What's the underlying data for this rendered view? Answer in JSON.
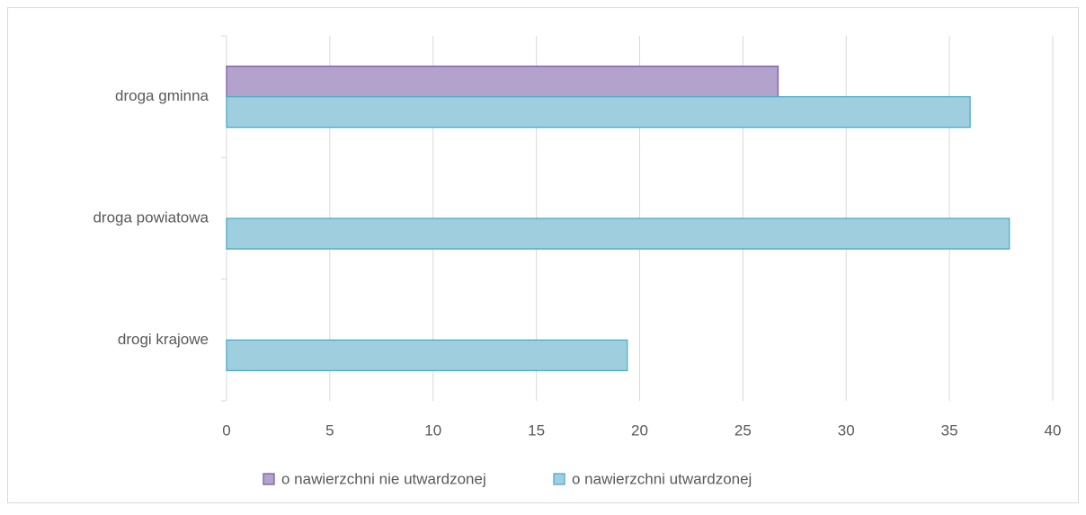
{
  "chart_data": {
    "type": "bar",
    "orientation": "horizontal",
    "categories": [
      "droga gminna",
      "droga powiatowa",
      "drogi krajowe"
    ],
    "series": [
      {
        "name": "o nawierzchni nie utwardzonej",
        "color": "#b3a2cc",
        "edge": "#7b5ea7",
        "values": [
          26.7,
          0,
          0
        ]
      },
      {
        "name": "o nawierzchni utwardzonej",
        "color": "#9fcfdf",
        "edge": "#4aacc5",
        "values": [
          36,
          37.9,
          19.4
        ]
      }
    ],
    "xlim": [
      0,
      40
    ],
    "xticks": [
      0,
      5,
      10,
      15,
      20,
      25,
      30,
      35,
      40
    ],
    "grid": true,
    "legend": "bottom"
  }
}
